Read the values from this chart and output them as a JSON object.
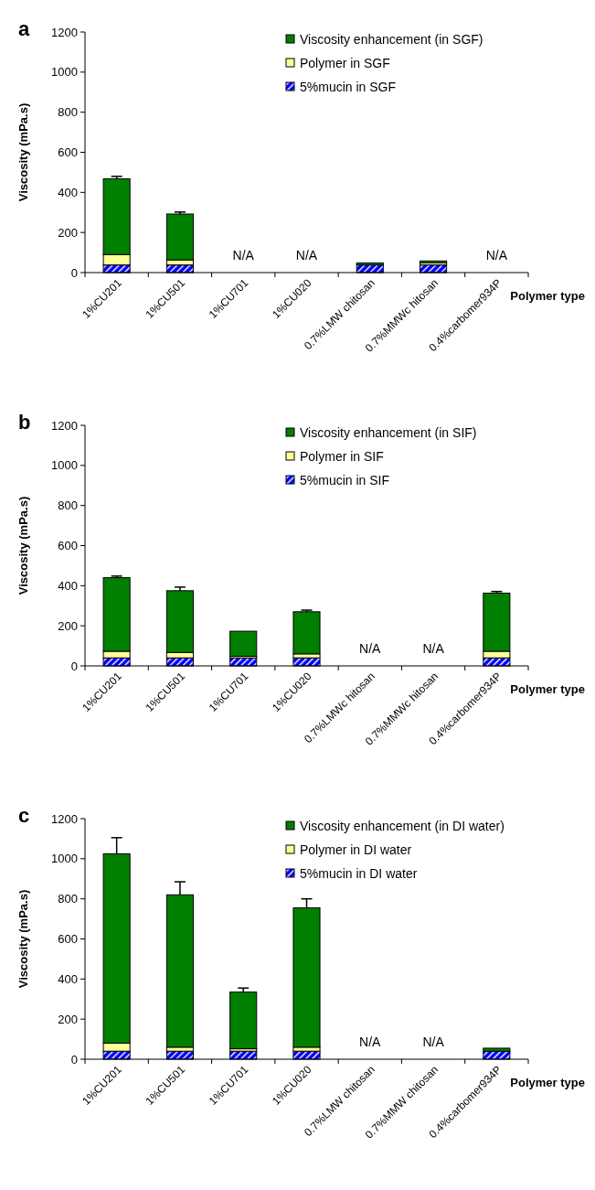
{
  "chart_data": [
    {
      "type": "bar",
      "title": "a",
      "stacked": true,
      "xlabel": "Polymer type",
      "ylabel": "Viscosity (mPa.s)",
      "ylim": [
        0,
        1200
      ],
      "yticks": [
        0,
        200,
        400,
        600,
        800,
        1000,
        1200
      ],
      "legend": "top right",
      "grid": false,
      "categories": [
        "1%CU201",
        "1%CU501",
        "1%CU701",
        "1%CU020",
        "0.7%LMW chitosan",
        "0.7%MMWc hitosan",
        "0.4%carbomer934P"
      ],
      "series": [
        {
          "name": "5%mucin in SGF",
          "color": "#0000ff",
          "values": [
            38,
            38,
            null,
            null,
            38,
            38,
            null
          ]
        },
        {
          "name": "Polymer in SGF",
          "color": "#ffff99",
          "values": [
            52,
            25,
            null,
            null,
            null,
            10,
            null
          ]
        },
        {
          "name": "Viscosity enhancement (in SGF)",
          "color": "#007f00",
          "values": [
            378,
            229,
            null,
            null,
            10,
            10,
            null
          ],
          "errors": [
            12,
            10,
            null,
            null,
            null,
            null,
            null
          ]
        }
      ],
      "annotations": [
        "N/A",
        "N/A",
        "N/A"
      ]
    },
    {
      "type": "bar",
      "title": "b",
      "stacked": true,
      "xlabel": "Polymer type",
      "ylabel": "Viscosity (mPa.s)",
      "ylim": [
        0,
        1200
      ],
      "yticks": [
        0,
        200,
        400,
        600,
        800,
        1000,
        1200
      ],
      "legend": "top right",
      "grid": false,
      "categories": [
        "1%CU201",
        "1%CU501",
        "1%CU701",
        "1%CU020",
        "0.7%LMWc hitosan",
        "0.7%MMWc hitosan",
        "0.4%carbomer934P"
      ],
      "series": [
        {
          "name": "5%mucin in SIF",
          "color": "#0000ff",
          "values": [
            40,
            40,
            40,
            40,
            null,
            null,
            40
          ]
        },
        {
          "name": "Polymer in SIF",
          "color": "#ffff99",
          "values": [
            33,
            27,
            8,
            20,
            null,
            null,
            33
          ]
        },
        {
          "name": "Viscosity enhancement (in SIF)",
          "color": "#007f00",
          "values": [
            367,
            308,
            125,
            210,
            null,
            null,
            290
          ],
          "errors": [
            8,
            18,
            null,
            8,
            null,
            null,
            8
          ]
        }
      ],
      "annotations": [
        "N/A",
        "N/A"
      ]
    },
    {
      "type": "bar",
      "title": "c",
      "stacked": true,
      "xlabel": "Polymer type",
      "ylabel": "Viscosity (mPa.s)",
      "ylim": [
        0,
        1200
      ],
      "yticks": [
        0,
        200,
        400,
        600,
        800,
        1000,
        1200
      ],
      "legend": "top right",
      "grid": false,
      "categories": [
        "1%CU201",
        "1%CU501",
        "1%CU701",
        "1%CU020",
        "0.7%LMW chitosan",
        "0.7%MMW chitosan",
        "0.4%carbomer934P"
      ],
      "series": [
        {
          "name": "5%mucin in DI water",
          "color": "#0000ff",
          "values": [
            40,
            40,
            40,
            40,
            null,
            null,
            40
          ]
        },
        {
          "name": "Polymer in DI water",
          "color": "#ffff99",
          "values": [
            40,
            20,
            12,
            20,
            null,
            null,
            null
          ]
        },
        {
          "name": "Viscosity enhancement (in DI water)",
          "color": "#007f00",
          "values": [
            945,
            760,
            283,
            695,
            null,
            null,
            15
          ],
          "errors": [
            80,
            65,
            20,
            45,
            null,
            null,
            null
          ]
        }
      ],
      "annotations": [
        "N/A",
        "N/A"
      ]
    }
  ]
}
